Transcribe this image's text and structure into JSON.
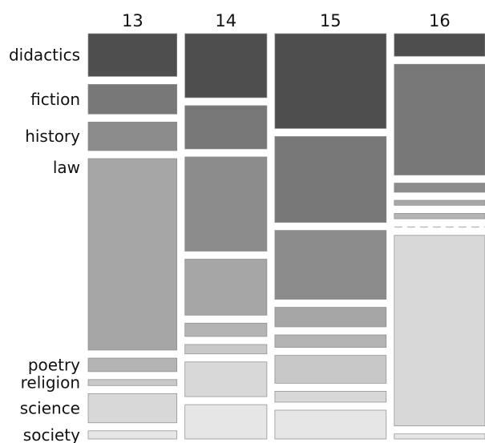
{
  "chart_data": {
    "type": "mosaic",
    "title": "",
    "columns": [
      "13",
      "14",
      "15",
      "16"
    ],
    "rows": [
      "didactics",
      "fiction",
      "history",
      "law",
      "poetry",
      "religion",
      "science",
      "society"
    ],
    "column_widths": [
      0.22,
      0.203,
      0.276,
      0.225
    ],
    "proportions": [
      [
        0.136,
        0.094,
        0.091,
        0.609,
        0.043,
        0.019,
        0.093,
        0.026
      ],
      [
        0.216,
        0.146,
        0.318,
        0.189,
        0.045,
        0.032,
        0.117,
        0.116
      ],
      [
        0.296,
        0.268,
        0.215,
        0.061,
        0.039,
        0.087,
        0.034,
        0.09
      ],
      [
        0.076,
        0.372,
        0.031,
        0.017,
        0.018,
        0.002,
        0.64,
        0.017
      ]
    ],
    "shades": [
      "#4e4e4e",
      "#787878",
      "#8c8c8c",
      "#a6a6a6",
      "#b4b4b4",
      "#c8c8c8",
      "#d8d8d8",
      "#e6e6e6"
    ]
  }
}
